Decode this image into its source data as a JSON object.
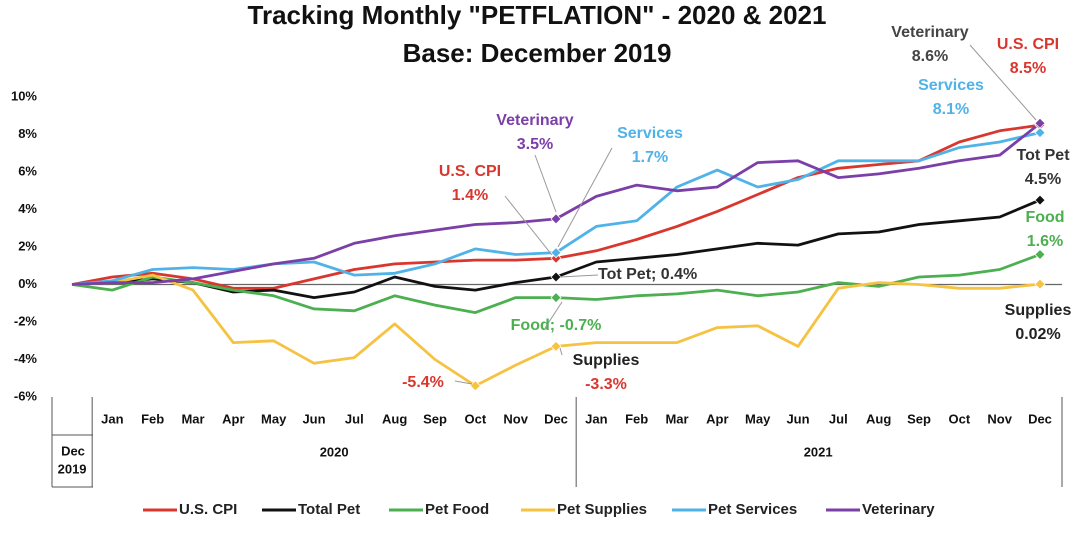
{
  "chart_data": {
    "type": "line",
    "title": [
      "Tracking Monthly \"PETFLATION\" - 2020 & 2021",
      "Base: December 2019"
    ],
    "categories": [
      "Dec",
      "Jan",
      "Feb",
      "Mar",
      "Apr",
      "May",
      "Jun",
      "Jul",
      "Aug",
      "Sep",
      "Oct",
      "Nov",
      "Dec",
      "Jan",
      "Feb",
      "Mar",
      "Apr",
      "May",
      "Jun",
      "Jul",
      "Aug",
      "Sep",
      "Oct",
      "Nov",
      "Dec"
    ],
    "year_groups": [
      {
        "label": "2019",
        "count": 1
      },
      {
        "label": "2020",
        "count": 12
      },
      {
        "label": "2021",
        "count": 12
      }
    ],
    "ylim": [
      -6,
      10
    ],
    "yticks": [
      {
        "value": -6,
        "label": "-6%"
      },
      {
        "value": -4,
        "label": "-4%"
      },
      {
        "value": -2,
        "label": "-2%"
      },
      {
        "value": 0,
        "label": "0%"
      },
      {
        "value": 2,
        "label": "2%"
      },
      {
        "value": 4,
        "label": "4%"
      },
      {
        "value": 6,
        "label": "6%"
      },
      {
        "value": 8,
        "label": "8%"
      },
      {
        "value": 10,
        "label": "10%"
      }
    ],
    "grid": false,
    "legend": "bottom",
    "series": [
      {
        "name": "U.S. CPI",
        "color": "#d9372e",
        "markers": [
          12,
          24
        ],
        "values": [
          0,
          0.4,
          0.6,
          0.3,
          -0.2,
          -0.2,
          0.3,
          0.8,
          1.1,
          1.2,
          1.3,
          1.3,
          1.4,
          1.8,
          2.4,
          3.1,
          3.9,
          4.8,
          5.7,
          6.2,
          6.4,
          6.6,
          7.6,
          8.2,
          8.5
        ]
      },
      {
        "name": "Total Pet",
        "color": "#111111",
        "markers": [
          12,
          24
        ],
        "values": [
          0,
          0.1,
          0.3,
          0.1,
          -0.4,
          -0.3,
          -0.7,
          -0.4,
          0.4,
          -0.1,
          -0.3,
          0.1,
          0.4,
          1.2,
          1.4,
          1.6,
          1.9,
          2.2,
          2.1,
          2.7,
          2.8,
          3.2,
          3.4,
          3.6,
          4.5
        ]
      },
      {
        "name": "Pet Food",
        "color": "#4caf50",
        "markers": [
          12,
          24
        ],
        "values": [
          0,
          -0.3,
          0.4,
          0.1,
          -0.3,
          -0.6,
          -1.3,
          -1.4,
          -0.6,
          -1.1,
          -1.5,
          -0.7,
          -0.7,
          -0.8,
          -0.6,
          -0.5,
          -0.3,
          -0.6,
          -0.4,
          0.1,
          -0.1,
          0.4,
          0.5,
          0.8,
          1.6
        ]
      },
      {
        "name": "Pet Supplies",
        "color": "#f5c242",
        "markers": [
          10,
          12,
          24
        ],
        "values": [
          0,
          0.1,
          0.5,
          -0.3,
          -3.1,
          -3.0,
          -4.2,
          -3.9,
          -2.1,
          -4.0,
          -5.4,
          -4.3,
          -3.3,
          -3.1,
          -3.1,
          -3.1,
          -2.3,
          -2.2,
          -3.3,
          -0.2,
          0.1,
          0,
          -0.2,
          -0.2,
          0.02
        ]
      },
      {
        "name": "Pet Services",
        "color": "#4fb3e8",
        "markers": [
          12,
          24
        ],
        "values": [
          0,
          0.2,
          0.8,
          0.9,
          0.8,
          1.1,
          1.2,
          0.5,
          0.6,
          1.1,
          1.9,
          1.6,
          1.7,
          3.1,
          3.4,
          5.2,
          6.1,
          5.2,
          5.6,
          6.6,
          6.6,
          6.6,
          7.3,
          7.6,
          8.1
        ]
      },
      {
        "name": "Veterinary",
        "color": "#7b3fa8",
        "markers": [
          12,
          24
        ],
        "values": [
          0,
          0.1,
          0.1,
          0.3,
          0.7,
          1.1,
          1.4,
          2.2,
          2.6,
          2.9,
          3.2,
          3.3,
          3.5,
          4.7,
          5.3,
          5.0,
          5.2,
          6.5,
          6.6,
          5.7,
          5.9,
          6.2,
          6.6,
          6.9,
          8.6
        ]
      }
    ],
    "annotations": [
      {
        "lines": [
          {
            "text": "Veterinary",
            "color": "#7b3fa8"
          },
          {
            "text": "3.5%",
            "color": "#7b3fa8"
          }
        ]
      },
      {
        "lines": [
          {
            "text": "U.S. CPI",
            "color": "#d9372e"
          },
          {
            "text": "1.4%",
            "color": "#d9372e"
          }
        ]
      },
      {
        "lines": [
          {
            "text": "Services",
            "color": "#4fb3e8"
          },
          {
            "text": "1.7%",
            "color": "#4fb3e8"
          }
        ]
      },
      {
        "lines": [
          {
            "text": "Tot Pet; 0.4%",
            "color": "#333333"
          }
        ]
      },
      {
        "lines": [
          {
            "text": "Food; -0.7%",
            "color": "#4caf50"
          }
        ]
      },
      {
        "lines": [
          {
            "text": "Supplies",
            "color": "#222222"
          },
          {
            "text": "-3.3%",
            "color": "#d9372e"
          }
        ]
      },
      {
        "lines": [
          {
            "text": "-5.4%",
            "color": "#d9372e"
          }
        ]
      },
      {
        "lines": [
          {
            "text": "Veterinary",
            "color": "#444444"
          },
          {
            "text": "8.6%",
            "color": "#444444"
          }
        ]
      },
      {
        "lines": [
          {
            "text": "U.S. CPI",
            "color": "#d9372e"
          },
          {
            "text": "8.5%",
            "color": "#d9372e"
          }
        ]
      },
      {
        "lines": [
          {
            "text": "Services",
            "color": "#4fb3e8"
          },
          {
            "text": "8.1%",
            "color": "#4fb3e8"
          }
        ]
      },
      {
        "lines": [
          {
            "text": "Tot Pet",
            "color": "#333333"
          },
          {
            "text": "4.5%",
            "color": "#333333"
          }
        ]
      },
      {
        "lines": [
          {
            "text": "Food",
            "color": "#4caf50"
          },
          {
            "text": "1.6%",
            "color": "#4caf50"
          }
        ]
      },
      {
        "lines": [
          {
            "text": "Supplies",
            "color": "#222222"
          },
          {
            "text": "0.02%",
            "color": "#222222"
          }
        ]
      }
    ]
  }
}
